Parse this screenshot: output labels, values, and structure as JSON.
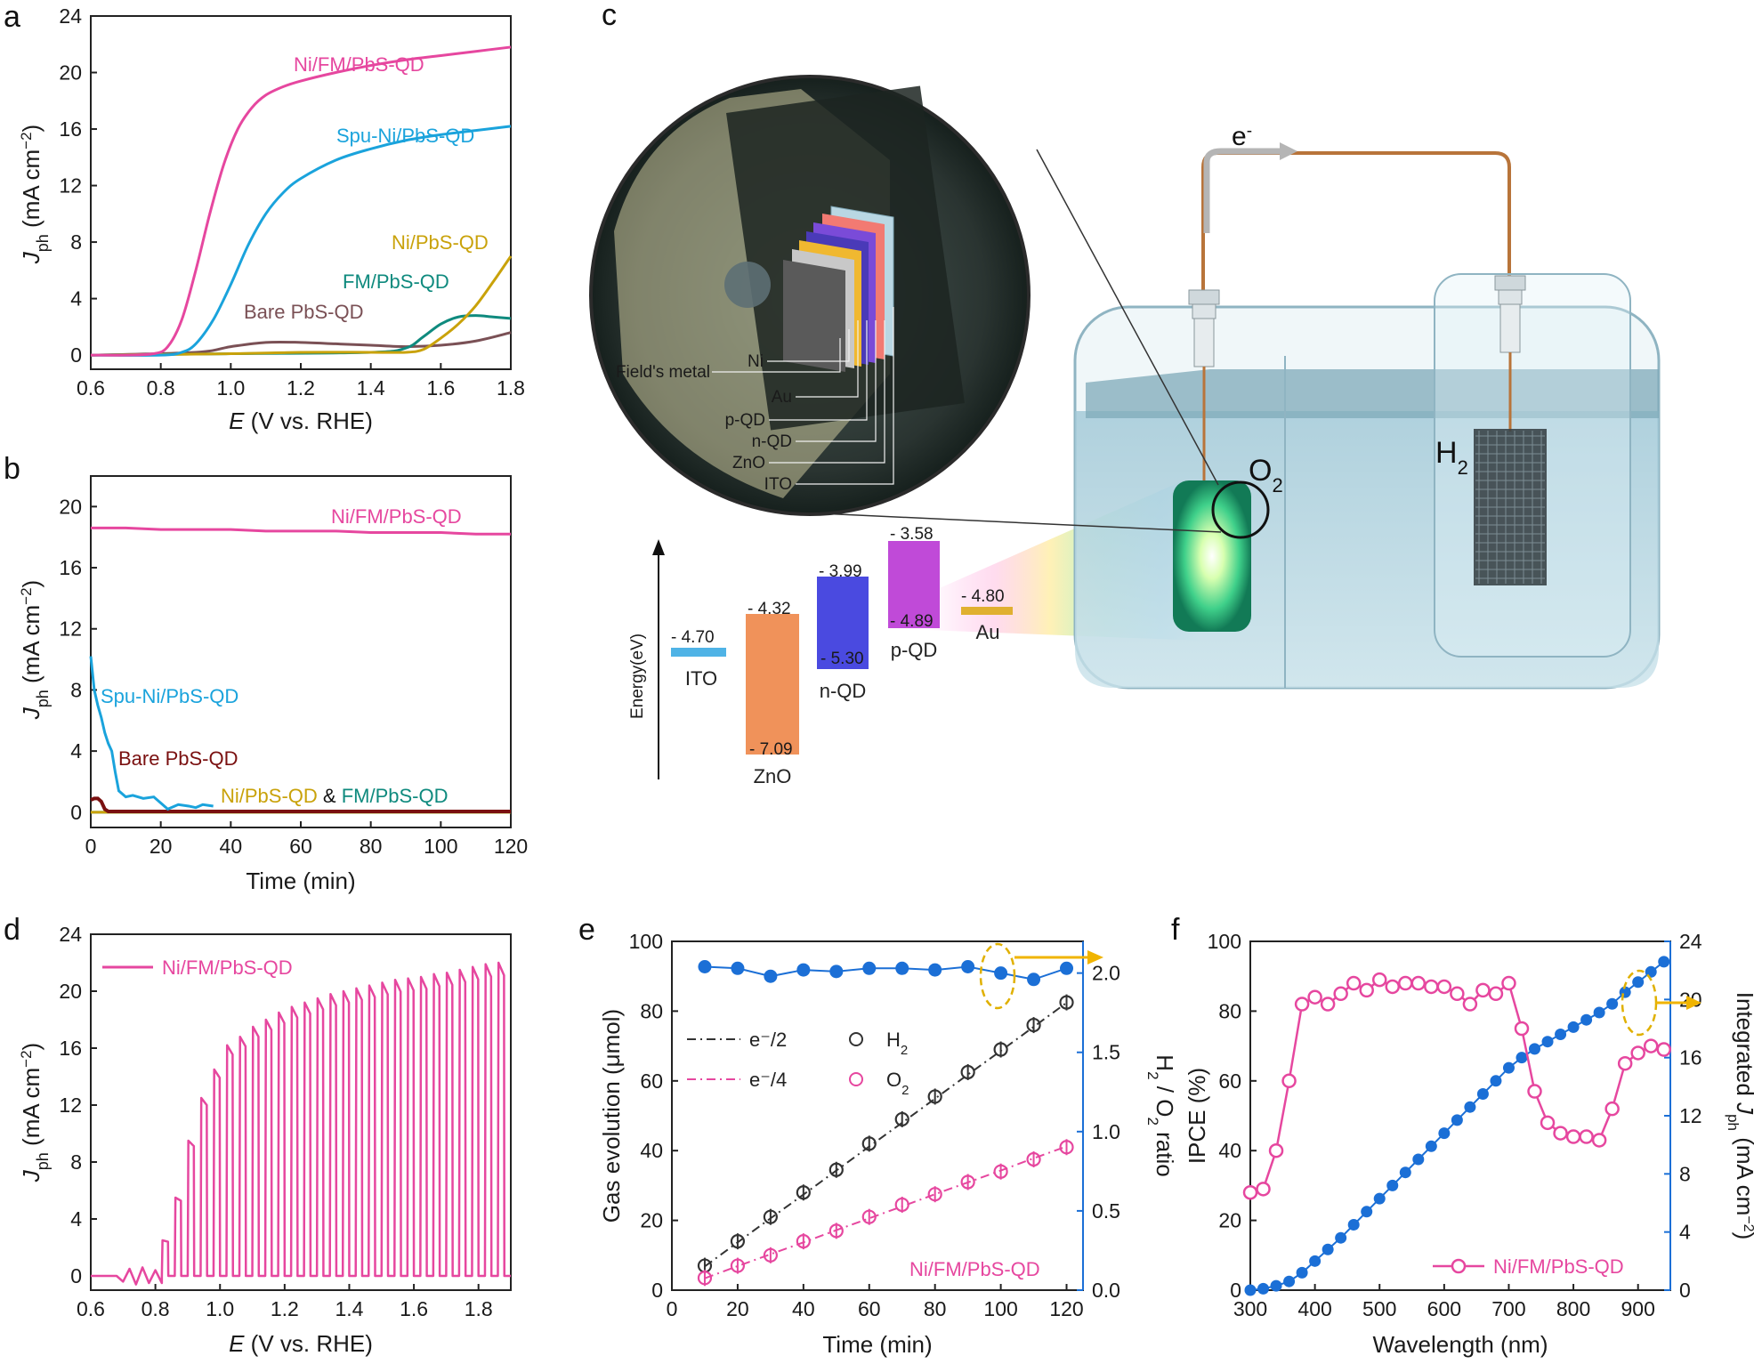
{
  "colors": {
    "pink": "#e6479f",
    "cyan": "#1aa3dc",
    "gold": "#c9a20a",
    "teal": "#0f8a7e",
    "brown": "#7a5055",
    "darkred": "#7a1010",
    "blue": "#1b6fd6",
    "darkgray": "#333333"
  },
  "chart_data": [
    {
      "panel": "a",
      "type": "line",
      "xlabel_italic": "E",
      "xlabel_rest": " (V vs. RHE)",
      "ylabel_main": "J",
      "ylabel_sub": "ph",
      "ylabel_unit": " (mA cm",
      "ylabel_sup": "−2",
      "ylabel_end": ")",
      "xlim": [
        0.6,
        1.8
      ],
      "ylim": [
        -1,
        24
      ],
      "xticks": [
        "0.6",
        "0.8",
        "1.0",
        "1.2",
        "1.4",
        "1.6",
        "1.8"
      ],
      "yticks": [
        "0",
        "4",
        "8",
        "12",
        "16",
        "20",
        "24"
      ],
      "series": [
        {
          "name": "Ni/FM/PbS-QD",
          "color": "pink",
          "x": [
            0.6,
            0.7,
            0.78,
            0.82,
            0.86,
            0.9,
            0.94,
            0.98,
            1.02,
            1.06,
            1.1,
            1.15,
            1.2,
            1.3,
            1.4,
            1.5,
            1.6,
            1.7,
            1.8
          ],
          "y": [
            0,
            0,
            0.1,
            0.6,
            2.5,
            6.0,
            10.0,
            13.5,
            16.0,
            17.5,
            18.4,
            19.0,
            19.4,
            20.0,
            20.5,
            20.9,
            21.2,
            21.5,
            21.8
          ]
        },
        {
          "name": "Spu-Ni/PbS-QD",
          "color": "cyan",
          "x": [
            0.6,
            0.8,
            0.86,
            0.9,
            0.95,
            1.0,
            1.05,
            1.1,
            1.15,
            1.2,
            1.3,
            1.4,
            1.5,
            1.6,
            1.7,
            1.8
          ],
          "y": [
            0,
            0,
            0.2,
            0.8,
            2.5,
            5.0,
            7.8,
            10.0,
            11.5,
            12.5,
            13.8,
            14.6,
            15.2,
            15.6,
            15.9,
            16.2
          ]
        },
        {
          "name": "Ni/PbS-QD",
          "color": "gold",
          "x": [
            0.6,
            1.0,
            1.2,
            1.4,
            1.5,
            1.55,
            1.6,
            1.65,
            1.7,
            1.75,
            1.8
          ],
          "y": [
            0,
            0.1,
            0.2,
            0.2,
            0.2,
            0.4,
            1.2,
            2.2,
            3.5,
            5.2,
            7.0
          ]
        },
        {
          "name": "FM/PbS-QD",
          "color": "teal",
          "x": [
            0.6,
            1.0,
            1.4,
            1.5,
            1.55,
            1.6,
            1.65,
            1.7,
            1.75,
            1.8
          ],
          "y": [
            0,
            0.1,
            0.2,
            0.5,
            1.3,
            2.2,
            2.7,
            2.8,
            2.7,
            2.6
          ]
        },
        {
          "name": "Bare PbS-QD",
          "color": "brown",
          "x": [
            0.6,
            0.9,
            1.0,
            1.1,
            1.2,
            1.3,
            1.4,
            1.5,
            1.6,
            1.7,
            1.8
          ],
          "y": [
            0,
            0.2,
            0.6,
            0.9,
            0.9,
            0.8,
            0.7,
            0.6,
            0.7,
            1.0,
            1.6
          ]
        }
      ]
    },
    {
      "panel": "b",
      "type": "line",
      "xlabel": "Time (min)",
      "ylabel_main": "J",
      "ylabel_sub": "ph",
      "ylabel_unit": " (mA cm",
      "ylabel_sup": "−2",
      "ylabel_end": ")",
      "xlim": [
        0,
        120
      ],
      "ylim": [
        -1,
        22
      ],
      "xticks": [
        "0",
        "20",
        "40",
        "60",
        "80",
        "100",
        "120"
      ],
      "yticks": [
        "0",
        "4",
        "8",
        "12",
        "16",
        "20"
      ],
      "series": [
        {
          "name": "Ni/FM/PbS-QD",
          "color": "pink",
          "x": [
            0,
            10,
            20,
            30,
            40,
            50,
            60,
            70,
            80,
            90,
            100,
            110,
            120
          ],
          "y": [
            18.6,
            18.6,
            18.5,
            18.5,
            18.5,
            18.4,
            18.4,
            18.4,
            18.3,
            18.3,
            18.3,
            18.2,
            18.2
          ]
        },
        {
          "name": "Spu-Ni/PbS-QD",
          "color": "cyan",
          "x": [
            0,
            1,
            2,
            3,
            4,
            5,
            6,
            7,
            8,
            10,
            12,
            15,
            18,
            20,
            22,
            25,
            28,
            30,
            32,
            35
          ],
          "y": [
            10.2,
            8.0,
            7.0,
            6.2,
            5.2,
            4.5,
            4.0,
            2.6,
            1.4,
            1.0,
            1.1,
            0.9,
            1.0,
            0.6,
            0.2,
            0.5,
            0.4,
            0.3,
            0.5,
            0.4
          ]
        },
        {
          "name": "Bare PbS-QD",
          "color": "darkred",
          "x": [
            0,
            1,
            2,
            3,
            4,
            5,
            120
          ],
          "y": [
            0.8,
            0.9,
            0.9,
            0.7,
            0.2,
            0.05,
            0.05
          ]
        },
        {
          "name": "Ni/PbS-QD",
          "color": "gold",
          "x": [
            0,
            120
          ],
          "y": [
            0,
            0
          ]
        },
        {
          "name": "FM/PbS-QD",
          "color": "teal",
          "x": [
            0,
            120
          ],
          "y": [
            0,
            0
          ]
        }
      ],
      "labels": {
        "combined_a": "Ni/PbS-QD",
        "combined_amp": " & ",
        "combined_b": "FM/PbS-QD"
      }
    },
    {
      "panel": "d",
      "type": "line",
      "xlabel_italic": "E",
      "xlabel_rest": " (V vs. RHE)",
      "ylabel_main": "J",
      "ylabel_sub": "ph",
      "ylabel_unit": " (mA cm",
      "ylabel_sup": "−2",
      "ylabel_end": ")",
      "xlim": [
        0.6,
        1.9
      ],
      "ylim": [
        -1,
        24
      ],
      "xticks": [
        "0.6",
        "0.8",
        "1.0",
        "1.2",
        "1.4",
        "1.6",
        "1.8"
      ],
      "yticks": [
        "0",
        "4",
        "8",
        "12",
        "16",
        "20",
        "24"
      ],
      "legend": "Ni/FM/PbS-QD",
      "series": [
        {
          "name": "Ni/FM/PbS-QD",
          "color": "pink",
          "chopped_light_on_peaks": {
            "x": [
              0.84,
              0.88,
              0.92,
              0.96,
              1.0,
              1.04,
              1.08,
              1.12,
              1.16,
              1.2,
              1.24,
              1.28,
              1.32,
              1.36,
              1.4,
              1.44,
              1.48,
              1.52,
              1.56,
              1.6,
              1.64,
              1.68,
              1.72,
              1.76,
              1.8,
              1.84,
              1.88
            ],
            "y": [
              2.5,
              5.5,
              9.5,
              12.5,
              14.5,
              16.2,
              16.8,
              17.5,
              18.0,
              18.5,
              18.9,
              19.2,
              19.5,
              19.8,
              20.0,
              20.2,
              20.4,
              20.6,
              20.8,
              20.9,
              21.0,
              21.2,
              21.3,
              21.5,
              21.7,
              21.9,
              22.0
            ]
          },
          "dark_current": 0
        }
      ]
    },
    {
      "panel": "e",
      "type": "scatter",
      "xlabel": "Time (min)",
      "ylabel": "Gas evolution (μmol)",
      "y2label_main": "H",
      "y2label_s1": "2",
      "y2label_mid": " / O",
      "y2label_s2": "2",
      "y2label_end": " ratio",
      "xlim": [
        0,
        125
      ],
      "ylim": [
        0,
        100
      ],
      "y2lim": [
        0,
        2.2
      ],
      "xticks": [
        "0",
        "20",
        "40",
        "60",
        "80",
        "100",
        "120"
      ],
      "yticks": [
        "0",
        "20",
        "40",
        "60",
        "80",
        "100"
      ],
      "y2ticks": [
        "0.0",
        "0.5",
        "1.0",
        "1.5",
        "2.0"
      ],
      "legend": {
        "line1": "e⁻/2",
        "line2": "e⁻/4",
        "h2_main": "H",
        "h2_sub": "2",
        "o2_main": "O",
        "o2_sub": "2"
      },
      "annotation": "Ni/FM/PbS-QD",
      "x": [
        10,
        20,
        30,
        40,
        50,
        60,
        70,
        80,
        90,
        100,
        110,
        120
      ],
      "series": [
        {
          "name": "H2",
          "color": "darkgray",
          "y": [
            7.0,
            14.0,
            21.0,
            28.0,
            34.5,
            42.0,
            49.0,
            55.5,
            62.5,
            69.0,
            76.0,
            82.5
          ]
        },
        {
          "name": "O2",
          "color": "pink",
          "y": [
            3.5,
            7.0,
            10.0,
            14.0,
            17.0,
            21.0,
            24.5,
            27.5,
            31.0,
            34.0,
            37.5,
            41.0
          ]
        },
        {
          "name": "e-/2",
          "color": "darkgray",
          "y": [
            6.8,
            13.7,
            20.6,
            27.4,
            34.3,
            41.2,
            48.0,
            54.9,
            61.8,
            68.6,
            75.5,
            82.4
          ]
        },
        {
          "name": "e-/4",
          "color": "pink",
          "y": [
            3.4,
            6.9,
            10.3,
            13.7,
            17.2,
            20.6,
            24.0,
            27.5,
            30.9,
            34.3,
            37.8,
            41.2
          ]
        },
        {
          "name": "ratio",
          "color": "blue",
          "axis": "right",
          "y": [
            2.04,
            2.03,
            1.98,
            2.02,
            2.01,
            2.03,
            2.03,
            2.02,
            2.04,
            2.0,
            1.96,
            2.03
          ]
        }
      ]
    },
    {
      "panel": "f",
      "type": "line",
      "xlabel": "Wavelength (nm)",
      "ylabel": "IPCE (%)",
      "y2label_a": "Integrated ",
      "y2label_main": "J",
      "y2label_sub": "ph",
      "y2label_unit": " (mA cm",
      "y2label_sup": "−2",
      "y2label_end": ")",
      "xlim": [
        300,
        950
      ],
      "ylim": [
        0,
        100
      ],
      "y2lim": [
        0,
        24
      ],
      "xticks": [
        "300",
        "400",
        "500",
        "600",
        "700",
        "800",
        "900"
      ],
      "yticks": [
        "0",
        "20",
        "40",
        "60",
        "80",
        "100"
      ],
      "y2ticks": [
        "0",
        "4",
        "8",
        "12",
        "16",
        "20",
        "24"
      ],
      "legend": "Ni/FM/PbS-QD",
      "series": [
        {
          "name": "IPCE",
          "color": "pink",
          "x": [
            300,
            320,
            340,
            360,
            380,
            400,
            420,
            440,
            460,
            480,
            500,
            520,
            540,
            560,
            580,
            600,
            620,
            640,
            660,
            680,
            700,
            720,
            740,
            760,
            780,
            800,
            820,
            840,
            860,
            880,
            900,
            920,
            940
          ],
          "y": [
            28,
            29,
            40,
            60,
            82,
            84,
            82,
            85,
            88,
            86,
            89,
            87,
            88,
            88,
            87,
            87,
            85,
            82,
            86,
            85,
            88,
            75,
            57,
            48,
            45,
            44,
            44,
            43,
            52,
            65,
            68,
            70,
            69
          ]
        },
        {
          "name": "Integrated Jph",
          "color": "blue",
          "axis": "right",
          "x": [
            300,
            320,
            340,
            360,
            380,
            400,
            420,
            440,
            460,
            480,
            500,
            520,
            540,
            560,
            580,
            600,
            620,
            640,
            660,
            680,
            700,
            720,
            740,
            760,
            780,
            800,
            820,
            840,
            860,
            880,
            900,
            920,
            940
          ],
          "y": [
            0,
            0.1,
            0.3,
            0.6,
            1.2,
            2.0,
            2.8,
            3.6,
            4.5,
            5.4,
            6.3,
            7.2,
            8.1,
            9.0,
            9.9,
            10.8,
            11.7,
            12.6,
            13.5,
            14.4,
            15.3,
            16.0,
            16.6,
            17.1,
            17.6,
            18.1,
            18.6,
            19.1,
            19.7,
            20.5,
            21.2,
            21.9,
            22.6
          ]
        }
      ]
    }
  ],
  "panel_labels": {
    "a": "a",
    "b": "b",
    "c": "c",
    "d": "d",
    "e": "e",
    "f": "f"
  },
  "diagram_c": {
    "electron_main": "e",
    "electron_sup": "-",
    "o2_main": "O",
    "o2_sub": "2",
    "h2_main": "H",
    "h2_sub": "2",
    "layers": [
      "Field's metal",
      "Ni",
      "Au",
      "p-QD",
      "n-QD",
      "ZnO",
      "ITO"
    ],
    "energy_axis": "Energy(eV)",
    "bands": [
      {
        "name": "ITO",
        "top": "- 4.70",
        "bottom": ""
      },
      {
        "name": "ZnO",
        "top": "- 4.32",
        "bottom": "- 7.09"
      },
      {
        "name": "n-QD",
        "top": "- 3.99",
        "bottom": "- 5.30"
      },
      {
        "name": "p-QD",
        "top": "- 3.58",
        "bottom": "- 4.89"
      },
      {
        "name": "Au",
        "top": "- 4.80",
        "bottom": ""
      }
    ]
  }
}
